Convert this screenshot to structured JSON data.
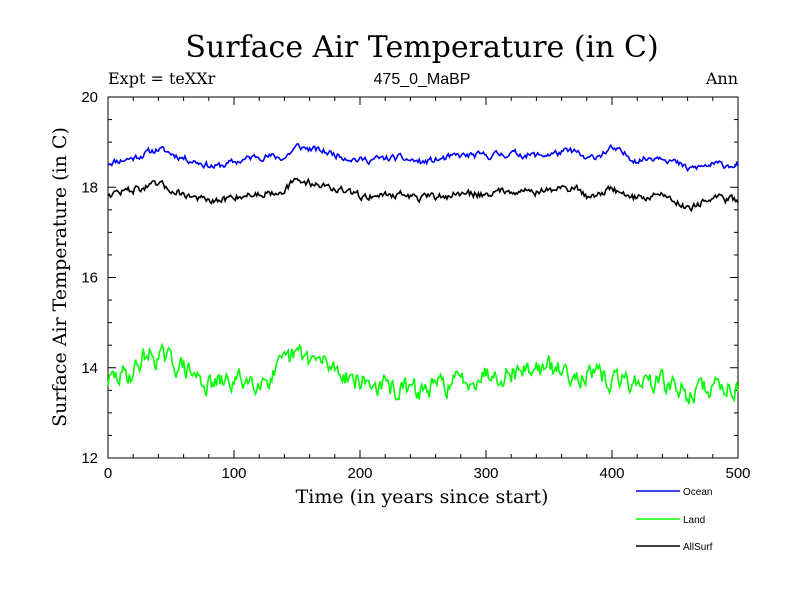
{
  "chart_data": {
    "type": "line",
    "title": "Surface Air Temperature (in C)",
    "subtitle_left": "Expt = teXXr",
    "subtitle_center": "475_0_MaBP",
    "subtitle_right": "Ann",
    "xlabel": "Time (in years since start)",
    "ylabel": "Surface Air Temperature (in C)",
    "xlim": [
      0,
      500
    ],
    "ylim": [
      12,
      20
    ],
    "xticks": [
      0,
      100,
      200,
      300,
      400,
      500
    ],
    "yticks": [
      12,
      14,
      16,
      18,
      20
    ],
    "legend_position": "bottom-right",
    "series": [
      {
        "name": "Ocean",
        "color": "#0000ff",
        "anchors": [
          [
            0,
            18.55
          ],
          [
            20,
            18.65
          ],
          [
            40,
            18.85
          ],
          [
            60,
            18.65
          ],
          [
            85,
            18.45
          ],
          [
            100,
            18.55
          ],
          [
            120,
            18.7
          ],
          [
            140,
            18.65
          ],
          [
            150,
            18.9
          ],
          [
            170,
            18.8
          ],
          [
            200,
            18.6
          ],
          [
            230,
            18.65
          ],
          [
            250,
            18.55
          ],
          [
            280,
            18.7
          ],
          [
            300,
            18.7
          ],
          [
            320,
            18.75
          ],
          [
            340,
            18.7
          ],
          [
            370,
            18.8
          ],
          [
            380,
            18.6
          ],
          [
            400,
            18.85
          ],
          [
            420,
            18.6
          ],
          [
            440,
            18.7
          ],
          [
            460,
            18.4
          ],
          [
            480,
            18.5
          ],
          [
            500,
            18.5
          ]
        ],
        "noise": 0.09,
        "seed": 11
      },
      {
        "name": "Land",
        "color": "#00ff00",
        "anchors": [
          [
            0,
            13.7
          ],
          [
            20,
            13.9
          ],
          [
            30,
            14.3
          ],
          [
            45,
            14.2
          ],
          [
            60,
            14.0
          ],
          [
            80,
            13.6
          ],
          [
            100,
            13.7
          ],
          [
            130,
            13.8
          ],
          [
            150,
            14.3
          ],
          [
            160,
            14.2
          ],
          [
            180,
            14.0
          ],
          [
            200,
            13.7
          ],
          [
            230,
            13.5
          ],
          [
            250,
            13.5
          ],
          [
            280,
            13.7
          ],
          [
            300,
            13.9
          ],
          [
            320,
            13.9
          ],
          [
            340,
            14.0
          ],
          [
            370,
            13.9
          ],
          [
            400,
            13.7
          ],
          [
            420,
            13.7
          ],
          [
            440,
            13.7
          ],
          [
            460,
            13.4
          ],
          [
            480,
            13.6
          ],
          [
            500,
            13.6
          ]
        ],
        "noise": 0.28,
        "seed": 29
      },
      {
        "name": "AllSurf",
        "color": "#000000",
        "anchors": [
          [
            0,
            17.85
          ],
          [
            20,
            17.95
          ],
          [
            40,
            18.05
          ],
          [
            60,
            17.85
          ],
          [
            85,
            17.65
          ],
          [
            100,
            17.8
          ],
          [
            120,
            17.85
          ],
          [
            140,
            17.95
          ],
          [
            150,
            18.15
          ],
          [
            170,
            18.05
          ],
          [
            200,
            17.8
          ],
          [
            230,
            17.85
          ],
          [
            250,
            17.75
          ],
          [
            280,
            17.85
          ],
          [
            300,
            17.85
          ],
          [
            320,
            17.95
          ],
          [
            340,
            17.9
          ],
          [
            370,
            18.0
          ],
          [
            380,
            17.8
          ],
          [
            400,
            17.95
          ],
          [
            420,
            17.75
          ],
          [
            440,
            17.85
          ],
          [
            460,
            17.55
          ],
          [
            480,
            17.75
          ],
          [
            500,
            17.72
          ]
        ],
        "noise": 0.1,
        "seed": 47
      }
    ]
  }
}
